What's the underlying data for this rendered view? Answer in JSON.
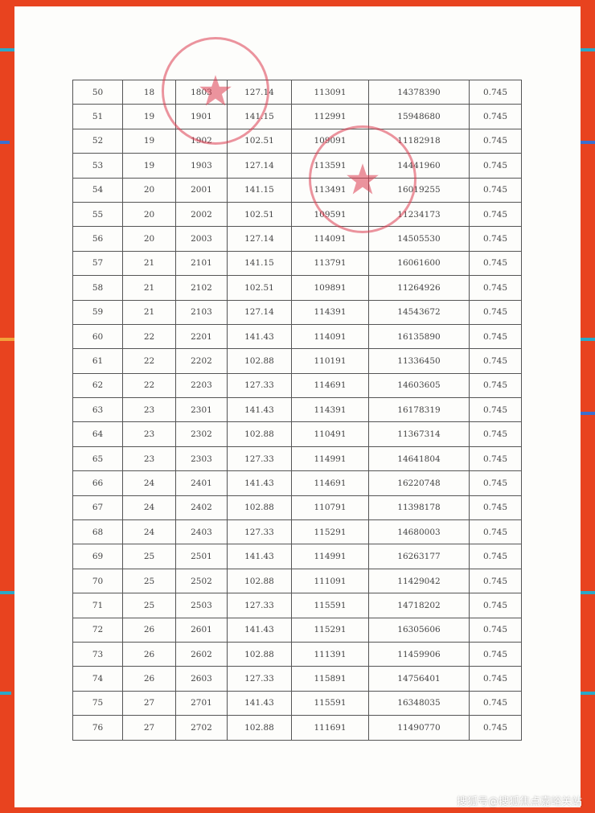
{
  "colors": {
    "background": "#e8431f",
    "stamp": "#dc3c50",
    "accent_stripe": "#2aa8c8"
  },
  "table": {
    "rows": [
      [
        "50",
        "18",
        "1803",
        "127.14",
        "113091",
        "14378390",
        "0.745"
      ],
      [
        "51",
        "19",
        "1901",
        "141.15",
        "112991",
        "15948680",
        "0.745"
      ],
      [
        "52",
        "19",
        "1902",
        "102.51",
        "109091",
        "11182918",
        "0.745"
      ],
      [
        "53",
        "19",
        "1903",
        "127.14",
        "113591",
        "14441960",
        "0.745"
      ],
      [
        "54",
        "20",
        "2001",
        "141.15",
        "113491",
        "16019255",
        "0.745"
      ],
      [
        "55",
        "20",
        "2002",
        "102.51",
        "109591",
        "11234173",
        "0.745"
      ],
      [
        "56",
        "20",
        "2003",
        "127.14",
        "114091",
        "14505530",
        "0.745"
      ],
      [
        "57",
        "21",
        "2101",
        "141.15",
        "113791",
        "16061600",
        "0.745"
      ],
      [
        "58",
        "21",
        "2102",
        "102.51",
        "109891",
        "11264926",
        "0.745"
      ],
      [
        "59",
        "21",
        "2103",
        "127.14",
        "114391",
        "14543672",
        "0.745"
      ],
      [
        "60",
        "22",
        "2201",
        "141.43",
        "114091",
        "16135890",
        "0.745"
      ],
      [
        "61",
        "22",
        "2202",
        "102.88",
        "110191",
        "11336450",
        "0.745"
      ],
      [
        "62",
        "22",
        "2203",
        "127.33",
        "114691",
        "14603605",
        "0.745"
      ],
      [
        "63",
        "23",
        "2301",
        "141.43",
        "114391",
        "16178319",
        "0.745"
      ],
      [
        "64",
        "23",
        "2302",
        "102.88",
        "110491",
        "11367314",
        "0.745"
      ],
      [
        "65",
        "23",
        "2303",
        "127.33",
        "114991",
        "14641804",
        "0.745"
      ],
      [
        "66",
        "24",
        "2401",
        "141.43",
        "114691",
        "16220748",
        "0.745"
      ],
      [
        "67",
        "24",
        "2402",
        "102.88",
        "110791",
        "11398178",
        "0.745"
      ],
      [
        "68",
        "24",
        "2403",
        "127.33",
        "115291",
        "14680003",
        "0.745"
      ],
      [
        "69",
        "25",
        "2501",
        "141.43",
        "114991",
        "16263177",
        "0.745"
      ],
      [
        "70",
        "25",
        "2502",
        "102.88",
        "111091",
        "11429042",
        "0.745"
      ],
      [
        "71",
        "25",
        "2503",
        "127.33",
        "115591",
        "14718202",
        "0.745"
      ],
      [
        "72",
        "26",
        "2601",
        "141.43",
        "115291",
        "16305606",
        "0.745"
      ],
      [
        "73",
        "26",
        "2602",
        "102.88",
        "111391",
        "11459906",
        "0.745"
      ],
      [
        "74",
        "26",
        "2603",
        "127.33",
        "115891",
        "14756401",
        "0.745"
      ],
      [
        "75",
        "27",
        "2701",
        "141.43",
        "115591",
        "16348035",
        "0.745"
      ],
      [
        "76",
        "27",
        "2702",
        "102.88",
        "111691",
        "11490770",
        "0.745"
      ]
    ]
  },
  "watermark": "搜狐号@搜狐焦点嘉峪关站"
}
